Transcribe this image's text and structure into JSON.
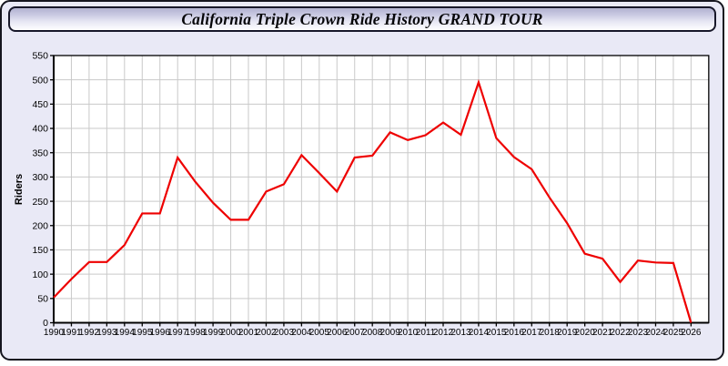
{
  "header": {
    "title": "California Triple Crown Ride History GRAND TOUR"
  },
  "colors": {
    "page_bg": "#e9e9f6",
    "plot_bg": "#ffffff",
    "grid": "#c9c9c9",
    "axis": "#000000",
    "line": "#ee0000"
  },
  "chart_data": {
    "type": "line",
    "title": "California Triple Crown Ride History GRAND TOUR",
    "xlabel": "",
    "ylabel": "Riders",
    "x": [
      1990,
      1991,
      1992,
      1993,
      1994,
      1995,
      1996,
      1997,
      1998,
      1999,
      2000,
      2001,
      2002,
      2003,
      2004,
      2005,
      2006,
      2007,
      2008,
      2009,
      2010,
      2011,
      2012,
      2013,
      2014,
      2015,
      2016,
      2017,
      2018,
      2019,
      2020,
      2021,
      2022,
      2023,
      2024,
      2025,
      2026
    ],
    "series": [
      {
        "name": "Riders",
        "color": "#ee0000",
        "values": [
          52,
          90,
          125,
          125,
          160,
          225,
          225,
          340,
          290,
          247,
          212,
          212,
          270,
          285,
          345,
          308,
          270,
          340,
          344,
          392,
          376,
          386,
          412,
          387,
          495,
          380,
          341,
          316,
          258,
          205,
          142,
          132,
          84,
          128,
          124,
          123,
          0
        ]
      }
    ],
    "ylim": [
      0,
      550
    ],
    "ytick_step": 50,
    "grid": true,
    "legend": "none"
  }
}
